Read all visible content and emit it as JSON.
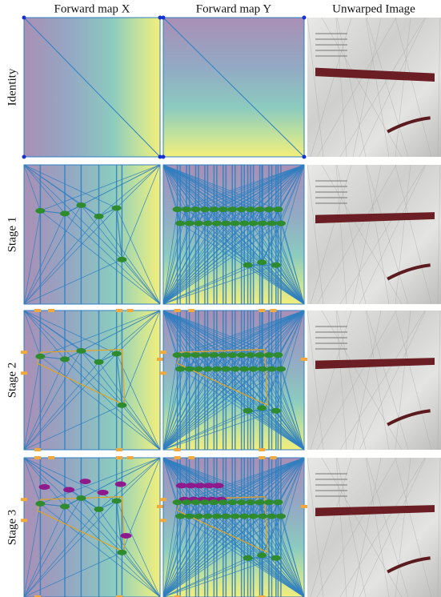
{
  "columns": [
    "Forward map X",
    "Forward map Y",
    "Unwarped Image"
  ],
  "rows": [
    "Identity",
    "Stage 1",
    "Stage 2",
    "Stage 3"
  ]
}
